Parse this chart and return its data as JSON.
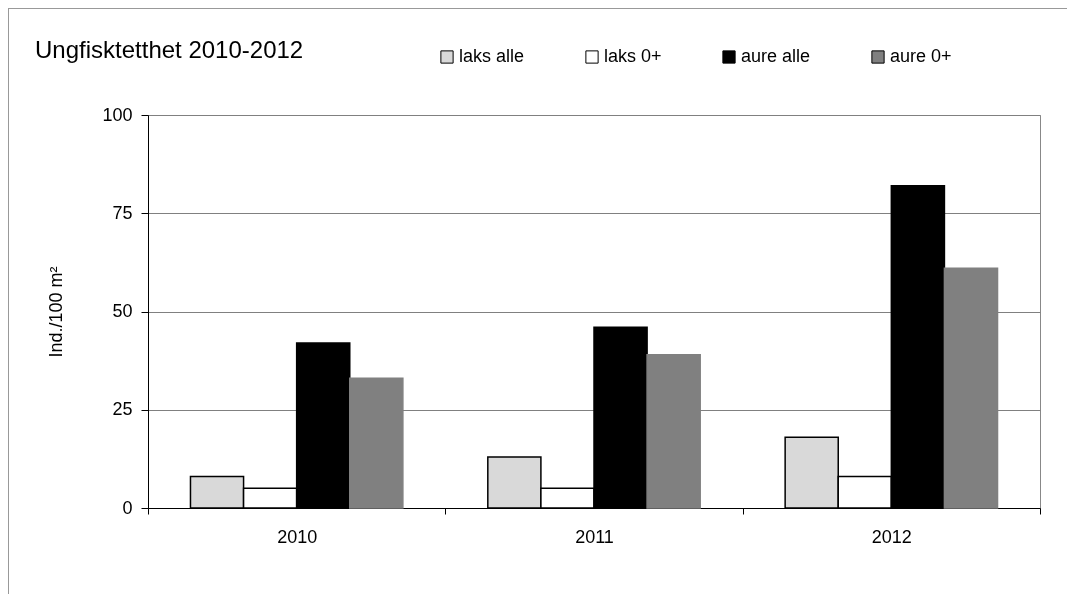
{
  "chart_data": {
    "type": "bar",
    "title": "Ungfisktetthet  2010-2012",
    "ylabel": "Ind./100 m²",
    "categories": [
      "2010",
      "2011",
      "2012"
    ],
    "series": [
      {
        "name": "laks alle",
        "color": "#d9d9d9",
        "values": [
          8,
          13,
          18
        ]
      },
      {
        "name": "laks 0+",
        "color": "#ffffff",
        "values": [
          5,
          5,
          8
        ]
      },
      {
        "name": "aure alle",
        "color": "#000000",
        "values": [
          42,
          46,
          82
        ]
      },
      {
        "name": "aure 0+",
        "color": "#808080",
        "values": [
          33,
          39,
          61
        ]
      }
    ],
    "ylim": [
      0,
      100
    ],
    "yticks": [
      0,
      25,
      50,
      75,
      100
    ],
    "grid": "y",
    "legend": "top"
  }
}
